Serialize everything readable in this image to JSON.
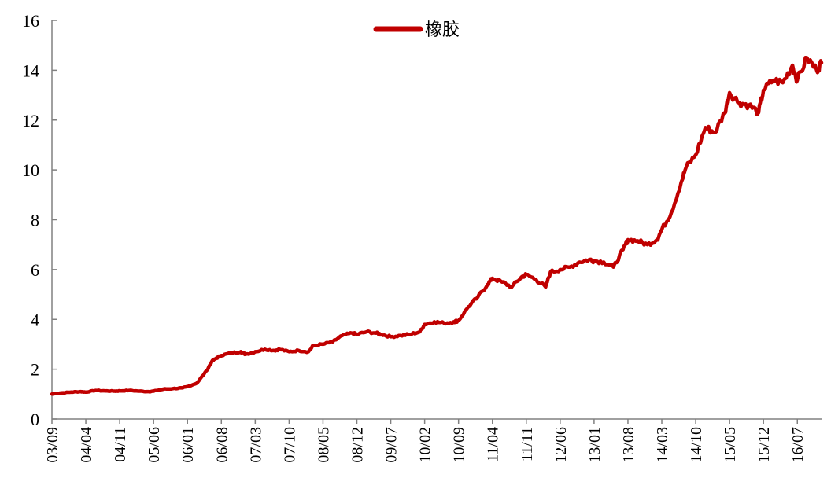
{
  "chart_data": {
    "type": "line",
    "title": "",
    "xlabel": "",
    "ylabel": "",
    "ylim": [
      0,
      16
    ],
    "y_ticks": [
      0,
      2,
      4,
      6,
      8,
      10,
      12,
      14,
      16
    ],
    "x_ticks": [
      "03/09",
      "04/04",
      "04/11",
      "05/06",
      "06/01",
      "06/08",
      "07/03",
      "07/10",
      "08/05",
      "08/12",
      "09/07",
      "10/02",
      "10/09",
      "11/04",
      "11/11",
      "12/06",
      "13/01",
      "13/08",
      "14/03",
      "14/10",
      "15/05",
      "15/12",
      "16/07"
    ],
    "grid": false,
    "legend": {
      "position": "top-center"
    },
    "colors": {
      "series": "#c00000",
      "axis": "#808080"
    },
    "series": [
      {
        "name": "橡胶",
        "x": [
          "2003-09",
          "2003-11",
          "2004-01",
          "2004-03",
          "2004-04",
          "2004-06",
          "2004-08",
          "2004-10",
          "2004-11",
          "2005-01",
          "2005-03",
          "2005-05",
          "2005-06",
          "2005-08",
          "2005-10",
          "2005-12",
          "2006-01",
          "2006-03",
          "2006-05",
          "2006-06",
          "2006-07",
          "2006-08",
          "2006-10",
          "2006-12",
          "2007-01",
          "2007-03",
          "2007-05",
          "2007-07",
          "2007-08",
          "2007-10",
          "2007-12",
          "2008-02",
          "2008-03",
          "2008-05",
          "2008-07",
          "2008-09",
          "2008-11",
          "2008-12",
          "2009-02",
          "2009-04",
          "2009-05",
          "2009-07",
          "2009-09",
          "2009-11",
          "2010-01",
          "2010-02",
          "2010-04",
          "2010-06",
          "2010-08",
          "2010-09",
          "2010-11",
          "2011-01",
          "2011-03",
          "2011-04",
          "2011-06",
          "2011-08",
          "2011-10",
          "2011-11",
          "2012-01",
          "2012-03",
          "2012-04",
          "2012-06",
          "2012-08",
          "2012-10",
          "2012-12",
          "2013-01",
          "2013-03",
          "2013-05",
          "2013-07",
          "2013-08",
          "2013-10",
          "2013-12",
          "2014-02",
          "2014-03",
          "2014-05",
          "2014-07",
          "2014-08",
          "2014-10",
          "2014-12",
          "2015-02",
          "2015-04",
          "2015-05",
          "2015-07",
          "2015-09",
          "2015-11",
          "2015-12",
          "2016-02",
          "2016-04",
          "2016-06",
          "2016-07",
          "2016-09",
          "2016-11",
          "2016-12"
        ],
        "values": [
          1.0,
          1.05,
          1.08,
          1.1,
          1.08,
          1.15,
          1.13,
          1.12,
          1.13,
          1.15,
          1.12,
          1.1,
          1.12,
          1.2,
          1.22,
          1.25,
          1.3,
          1.45,
          1.95,
          2.3,
          2.45,
          2.55,
          2.65,
          2.7,
          2.6,
          2.7,
          2.8,
          2.75,
          2.8,
          2.7,
          2.75,
          2.7,
          2.95,
          3.0,
          3.1,
          3.35,
          3.45,
          3.4,
          3.5,
          3.45,
          3.4,
          3.3,
          3.35,
          3.4,
          3.5,
          3.8,
          3.9,
          3.85,
          3.9,
          3.95,
          4.5,
          4.9,
          5.4,
          5.65,
          5.5,
          5.3,
          5.7,
          5.8,
          5.6,
          5.3,
          5.9,
          6.0,
          6.1,
          6.3,
          6.4,
          6.35,
          6.3,
          6.1,
          6.8,
          7.2,
          7.15,
          7.0,
          7.2,
          7.6,
          8.3,
          9.5,
          10.1,
          10.6,
          11.7,
          11.5,
          12.3,
          13.1,
          12.7,
          12.6,
          12.3,
          13.2,
          13.6,
          13.5,
          14.2,
          13.6,
          14.5,
          14.0,
          14.3
        ]
      }
    ]
  }
}
